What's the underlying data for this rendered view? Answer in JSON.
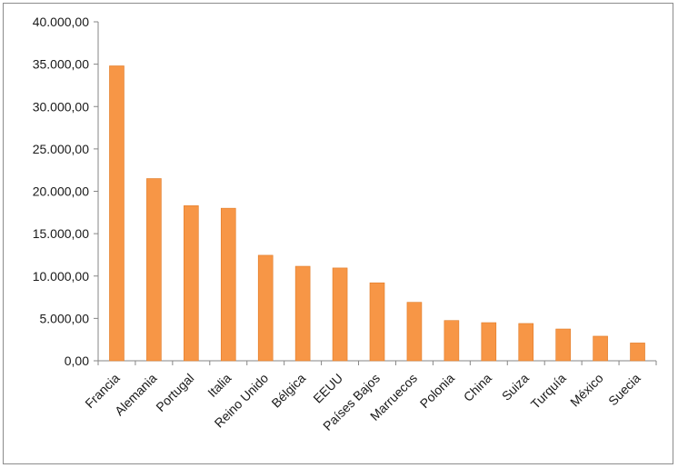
{
  "chart_data": {
    "type": "bar",
    "categories": [
      "Francia",
      "Alemania",
      "Portugal",
      "Italia",
      "Reino Unido",
      "Bélgica",
      "EEUU",
      "Países Bajos",
      "Marruecos",
      "Polonia",
      "China",
      "Suiza",
      "Turquía",
      "México",
      "Suecia"
    ],
    "values": [
      34800,
      21500,
      18300,
      18000,
      12450,
      11150,
      10950,
      9200,
      6900,
      4750,
      4500,
      4400,
      3750,
      2900,
      2100
    ],
    "title": "",
    "xlabel": "",
    "ylabel": "",
    "ylim": [
      0,
      40000
    ],
    "ytick_labels": [
      "0,00",
      "5.000,00",
      "10.000,00",
      "15.000,00",
      "20.000,00",
      "25.000,00",
      "30.000,00",
      "35.000,00",
      "40.000,00"
    ],
    "bar_color": "#f79646",
    "bar_edge_color": "#e07a26",
    "grid": false,
    "legend": "none"
  }
}
